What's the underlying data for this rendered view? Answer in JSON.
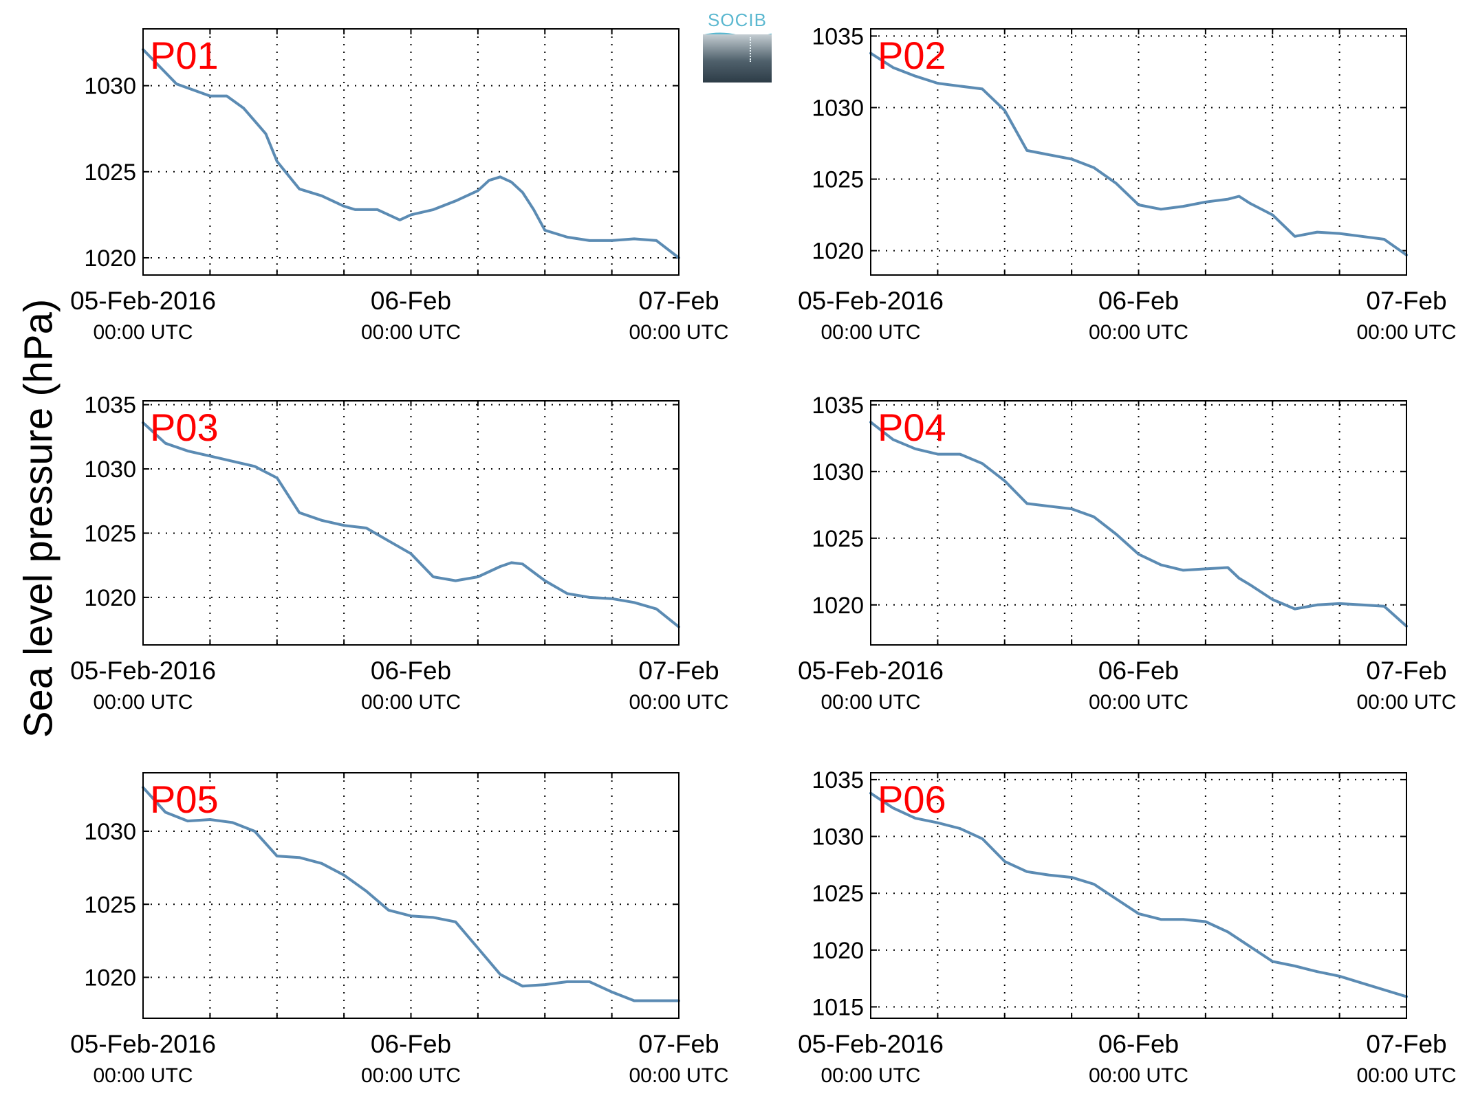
{
  "figure": {
    "ylabel": "Sea level pressure (hPa)",
    "logo_text": "SOCIB",
    "colors": {
      "line": "#5b8bb3",
      "panel_label": "#ff0000",
      "axes": "#000000"
    }
  },
  "chart_data": [
    {
      "type": "line",
      "label": "P01",
      "grid": true,
      "xlim": [
        "2016-02-05 00:00",
        "2016-02-07 00:00"
      ],
      "ylim": [
        1019,
        1033.3
      ],
      "yticks": [
        1020,
        1025,
        1030
      ],
      "xticks": [
        {
          "value": "2016-02-05 00:00",
          "line1": "05-Feb-2016",
          "line2": "00:00 UTC"
        },
        {
          "value": "2016-02-06 00:00",
          "line1": "06-Feb",
          "line2": "00:00 UTC"
        },
        {
          "value": "2016-02-07 00:00",
          "line1": "07-Feb",
          "line2": "00:00 UTC"
        }
      ],
      "x": [
        "2016-02-05 00:00",
        "2016-02-05 03:00",
        "2016-02-05 06:00",
        "2016-02-05 07:30",
        "2016-02-05 09:00",
        "2016-02-05 11:00",
        "2016-02-05 12:00",
        "2016-02-05 14:00",
        "2016-02-05 16:00",
        "2016-02-05 18:00",
        "2016-02-05 19:00",
        "2016-02-05 21:00",
        "2016-02-05 23:00",
        "2016-02-06 00:00",
        "2016-02-06 02:00",
        "2016-02-06 04:00",
        "2016-02-06 06:00",
        "2016-02-06 07:00",
        "2016-02-06 08:00",
        "2016-02-06 09:00",
        "2016-02-06 10:00",
        "2016-02-06 11:00",
        "2016-02-06 12:00",
        "2016-02-06 14:00",
        "2016-02-06 16:00",
        "2016-02-06 18:00",
        "2016-02-06 20:00",
        "2016-02-06 22:00",
        "2016-02-07 00:00"
      ],
      "y": [
        1032.1,
        1030.1,
        1029.4,
        1029.4,
        1028.7,
        1027.2,
        1025.6,
        1024.0,
        1023.6,
        1023.0,
        1022.8,
        1022.8,
        1022.2,
        1022.5,
        1022.8,
        1023.3,
        1023.9,
        1024.5,
        1024.7,
        1024.4,
        1023.8,
        1022.8,
        1021.6,
        1021.2,
        1021.0,
        1021.0,
        1021.1,
        1021.0,
        1020.0
      ]
    },
    {
      "type": "line",
      "label": "P02",
      "grid": true,
      "xlim": [
        "2016-02-05 00:00",
        "2016-02-07 00:00"
      ],
      "ylim": [
        1018.3,
        1035.5
      ],
      "yticks": [
        1020,
        1025,
        1030,
        1035
      ],
      "xticks": [
        {
          "value": "2016-02-05 00:00",
          "line1": "05-Feb-2016",
          "line2": "00:00 UTC"
        },
        {
          "value": "2016-02-06 00:00",
          "line1": "06-Feb",
          "line2": "00:00 UTC"
        },
        {
          "value": "2016-02-07 00:00",
          "line1": "07-Feb",
          "line2": "00:00 UTC"
        }
      ],
      "x": [
        "2016-02-05 00:00",
        "2016-02-05 02:00",
        "2016-02-05 04:00",
        "2016-02-05 06:00",
        "2016-02-05 08:00",
        "2016-02-05 10:00",
        "2016-02-05 12:00",
        "2016-02-05 14:00",
        "2016-02-05 16:00",
        "2016-02-05 18:00",
        "2016-02-05 20:00",
        "2016-02-05 22:00",
        "2016-02-06 00:00",
        "2016-02-06 02:00",
        "2016-02-06 04:00",
        "2016-02-06 06:00",
        "2016-02-06 08:00",
        "2016-02-06 09:00",
        "2016-02-06 10:00",
        "2016-02-06 12:00",
        "2016-02-06 14:00",
        "2016-02-06 16:00",
        "2016-02-06 18:00",
        "2016-02-06 20:00",
        "2016-02-06 22:00",
        "2016-02-07 00:00"
      ],
      "y": [
        1033.8,
        1032.8,
        1032.2,
        1031.7,
        1031.5,
        1031.3,
        1029.8,
        1027.0,
        1026.7,
        1026.4,
        1025.8,
        1024.7,
        1023.2,
        1022.9,
        1023.1,
        1023.4,
        1023.6,
        1023.8,
        1023.3,
        1022.5,
        1021.0,
        1021.3,
        1021.2,
        1021.0,
        1020.8,
        1019.7
      ]
    },
    {
      "type": "line",
      "label": "P03",
      "grid": true,
      "xlim": [
        "2016-02-05 00:00",
        "2016-02-07 00:00"
      ],
      "ylim": [
        1016.3,
        1035.3
      ],
      "yticks": [
        1020,
        1025,
        1030,
        1035
      ],
      "xticks": [
        {
          "value": "2016-02-05 00:00",
          "line1": "05-Feb-2016",
          "line2": "00:00 UTC"
        },
        {
          "value": "2016-02-06 00:00",
          "line1": "06-Feb",
          "line2": "00:00 UTC"
        },
        {
          "value": "2016-02-07 00:00",
          "line1": "07-Feb",
          "line2": "00:00 UTC"
        }
      ],
      "x": [
        "2016-02-05 00:00",
        "2016-02-05 02:00",
        "2016-02-05 04:00",
        "2016-02-05 06:00",
        "2016-02-05 08:00",
        "2016-02-05 10:00",
        "2016-02-05 12:00",
        "2016-02-05 14:00",
        "2016-02-05 16:00",
        "2016-02-05 18:00",
        "2016-02-05 20:00",
        "2016-02-05 22:00",
        "2016-02-06 00:00",
        "2016-02-06 02:00",
        "2016-02-06 04:00",
        "2016-02-06 06:00",
        "2016-02-06 08:00",
        "2016-02-06 09:00",
        "2016-02-06 10:00",
        "2016-02-06 12:00",
        "2016-02-06 14:00",
        "2016-02-06 16:00",
        "2016-02-06 18:00",
        "2016-02-06 20:00",
        "2016-02-06 22:00",
        "2016-02-07 00:00"
      ],
      "y": [
        1033.6,
        1032.0,
        1031.4,
        1031.0,
        1030.6,
        1030.2,
        1029.3,
        1026.6,
        1026.0,
        1025.6,
        1025.4,
        1024.4,
        1023.4,
        1021.6,
        1021.3,
        1021.6,
        1022.4,
        1022.7,
        1022.6,
        1021.3,
        1020.3,
        1020.0,
        1019.9,
        1019.6,
        1019.1,
        1017.7
      ]
    },
    {
      "type": "line",
      "label": "P04",
      "grid": true,
      "xlim": [
        "2016-02-05 00:00",
        "2016-02-07 00:00"
      ],
      "ylim": [
        1017,
        1035.3
      ],
      "yticks": [
        1020,
        1025,
        1030,
        1035
      ],
      "xticks": [
        {
          "value": "2016-02-05 00:00",
          "line1": "05-Feb-2016",
          "line2": "00:00 UTC"
        },
        {
          "value": "2016-02-06 00:00",
          "line1": "06-Feb",
          "line2": "00:00 UTC"
        },
        {
          "value": "2016-02-07 00:00",
          "line1": "07-Feb",
          "line2": "00:00 UTC"
        }
      ],
      "x": [
        "2016-02-05 00:00",
        "2016-02-05 02:00",
        "2016-02-05 04:00",
        "2016-02-05 06:00",
        "2016-02-05 08:00",
        "2016-02-05 10:00",
        "2016-02-05 12:00",
        "2016-02-05 14:00",
        "2016-02-05 16:00",
        "2016-02-05 18:00",
        "2016-02-05 20:00",
        "2016-02-05 22:00",
        "2016-02-06 00:00",
        "2016-02-06 02:00",
        "2016-02-06 04:00",
        "2016-02-06 06:00",
        "2016-02-06 08:00",
        "2016-02-06 09:00",
        "2016-02-06 10:00",
        "2016-02-06 12:00",
        "2016-02-06 14:00",
        "2016-02-06 16:00",
        "2016-02-06 18:00",
        "2016-02-06 20:00",
        "2016-02-06 22:00",
        "2016-02-07 00:00"
      ],
      "y": [
        1033.7,
        1032.4,
        1031.7,
        1031.3,
        1031.3,
        1030.6,
        1029.3,
        1027.6,
        1027.4,
        1027.2,
        1026.6,
        1025.3,
        1023.8,
        1023.0,
        1022.6,
        1022.7,
        1022.8,
        1022.0,
        1021.5,
        1020.4,
        1019.7,
        1020.0,
        1020.1,
        1020.0,
        1019.9,
        1018.4
      ]
    },
    {
      "type": "line",
      "label": "P05",
      "grid": true,
      "xlim": [
        "2016-02-05 00:00",
        "2016-02-07 00:00"
      ],
      "ylim": [
        1017.2,
        1034
      ],
      "yticks": [
        1020,
        1025,
        1030
      ],
      "xticks": [
        {
          "value": "2016-02-05 00:00",
          "line1": "05-Feb-2016",
          "line2": "00:00 UTC"
        },
        {
          "value": "2016-02-06 00:00",
          "line1": "06-Feb",
          "line2": "00:00 UTC"
        },
        {
          "value": "2016-02-07 00:00",
          "line1": "07-Feb",
          "line2": "00:00 UTC"
        }
      ],
      "x": [
        "2016-02-05 00:00",
        "2016-02-05 02:00",
        "2016-02-05 04:00",
        "2016-02-05 06:00",
        "2016-02-05 08:00",
        "2016-02-05 10:00",
        "2016-02-05 12:00",
        "2016-02-05 14:00",
        "2016-02-05 16:00",
        "2016-02-05 18:00",
        "2016-02-05 20:00",
        "2016-02-05 22:00",
        "2016-02-06 00:00",
        "2016-02-06 02:00",
        "2016-02-06 04:00",
        "2016-02-06 06:00",
        "2016-02-06 08:00",
        "2016-02-06 10:00",
        "2016-02-06 12:00",
        "2016-02-06 14:00",
        "2016-02-06 16:00",
        "2016-02-06 18:00",
        "2016-02-06 20:00",
        "2016-02-06 22:00",
        "2016-02-07 00:00"
      ],
      "y": [
        1033.0,
        1031.3,
        1030.7,
        1030.8,
        1030.6,
        1030.0,
        1028.3,
        1028.2,
        1027.8,
        1027.0,
        1025.9,
        1024.6,
        1024.2,
        1024.1,
        1023.8,
        1022.0,
        1020.2,
        1019.4,
        1019.5,
        1019.7,
        1019.7,
        1019.0,
        1018.4,
        1018.4,
        1018.4
      ]
    },
    {
      "type": "line",
      "label": "P06",
      "grid": true,
      "xlim": [
        "2016-02-05 00:00",
        "2016-02-07 00:00"
      ],
      "ylim": [
        1014,
        1035.6
      ],
      "yticks": [
        1015,
        1020,
        1025,
        1030,
        1035
      ],
      "xticks": [
        {
          "value": "2016-02-05 00:00",
          "line1": "05-Feb-2016",
          "line2": "00:00 UTC"
        },
        {
          "value": "2016-02-06 00:00",
          "line1": "06-Feb",
          "line2": "00:00 UTC"
        },
        {
          "value": "2016-02-07 00:00",
          "line1": "07-Feb",
          "line2": "00:00 UTC"
        }
      ],
      "x": [
        "2016-02-05 00:00",
        "2016-02-05 02:00",
        "2016-02-05 04:00",
        "2016-02-05 06:00",
        "2016-02-05 08:00",
        "2016-02-05 10:00",
        "2016-02-05 12:00",
        "2016-02-05 14:00",
        "2016-02-05 16:00",
        "2016-02-05 18:00",
        "2016-02-05 20:00",
        "2016-02-05 22:00",
        "2016-02-06 00:00",
        "2016-02-06 02:00",
        "2016-02-06 04:00",
        "2016-02-06 06:00",
        "2016-02-06 08:00",
        "2016-02-06 10:00",
        "2016-02-06 12:00",
        "2016-02-06 14:00",
        "2016-02-06 16:00",
        "2016-02-06 18:00",
        "2016-02-06 20:00",
        "2016-02-07 00:00"
      ],
      "y": [
        1033.8,
        1032.5,
        1031.6,
        1031.2,
        1030.7,
        1029.8,
        1027.8,
        1026.9,
        1026.6,
        1026.4,
        1025.8,
        1024.5,
        1023.2,
        1022.7,
        1022.7,
        1022.5,
        1021.6,
        1020.3,
        1019.0,
        1018.6,
        1018.1,
        1017.7,
        1017.1,
        1015.9
      ]
    }
  ]
}
